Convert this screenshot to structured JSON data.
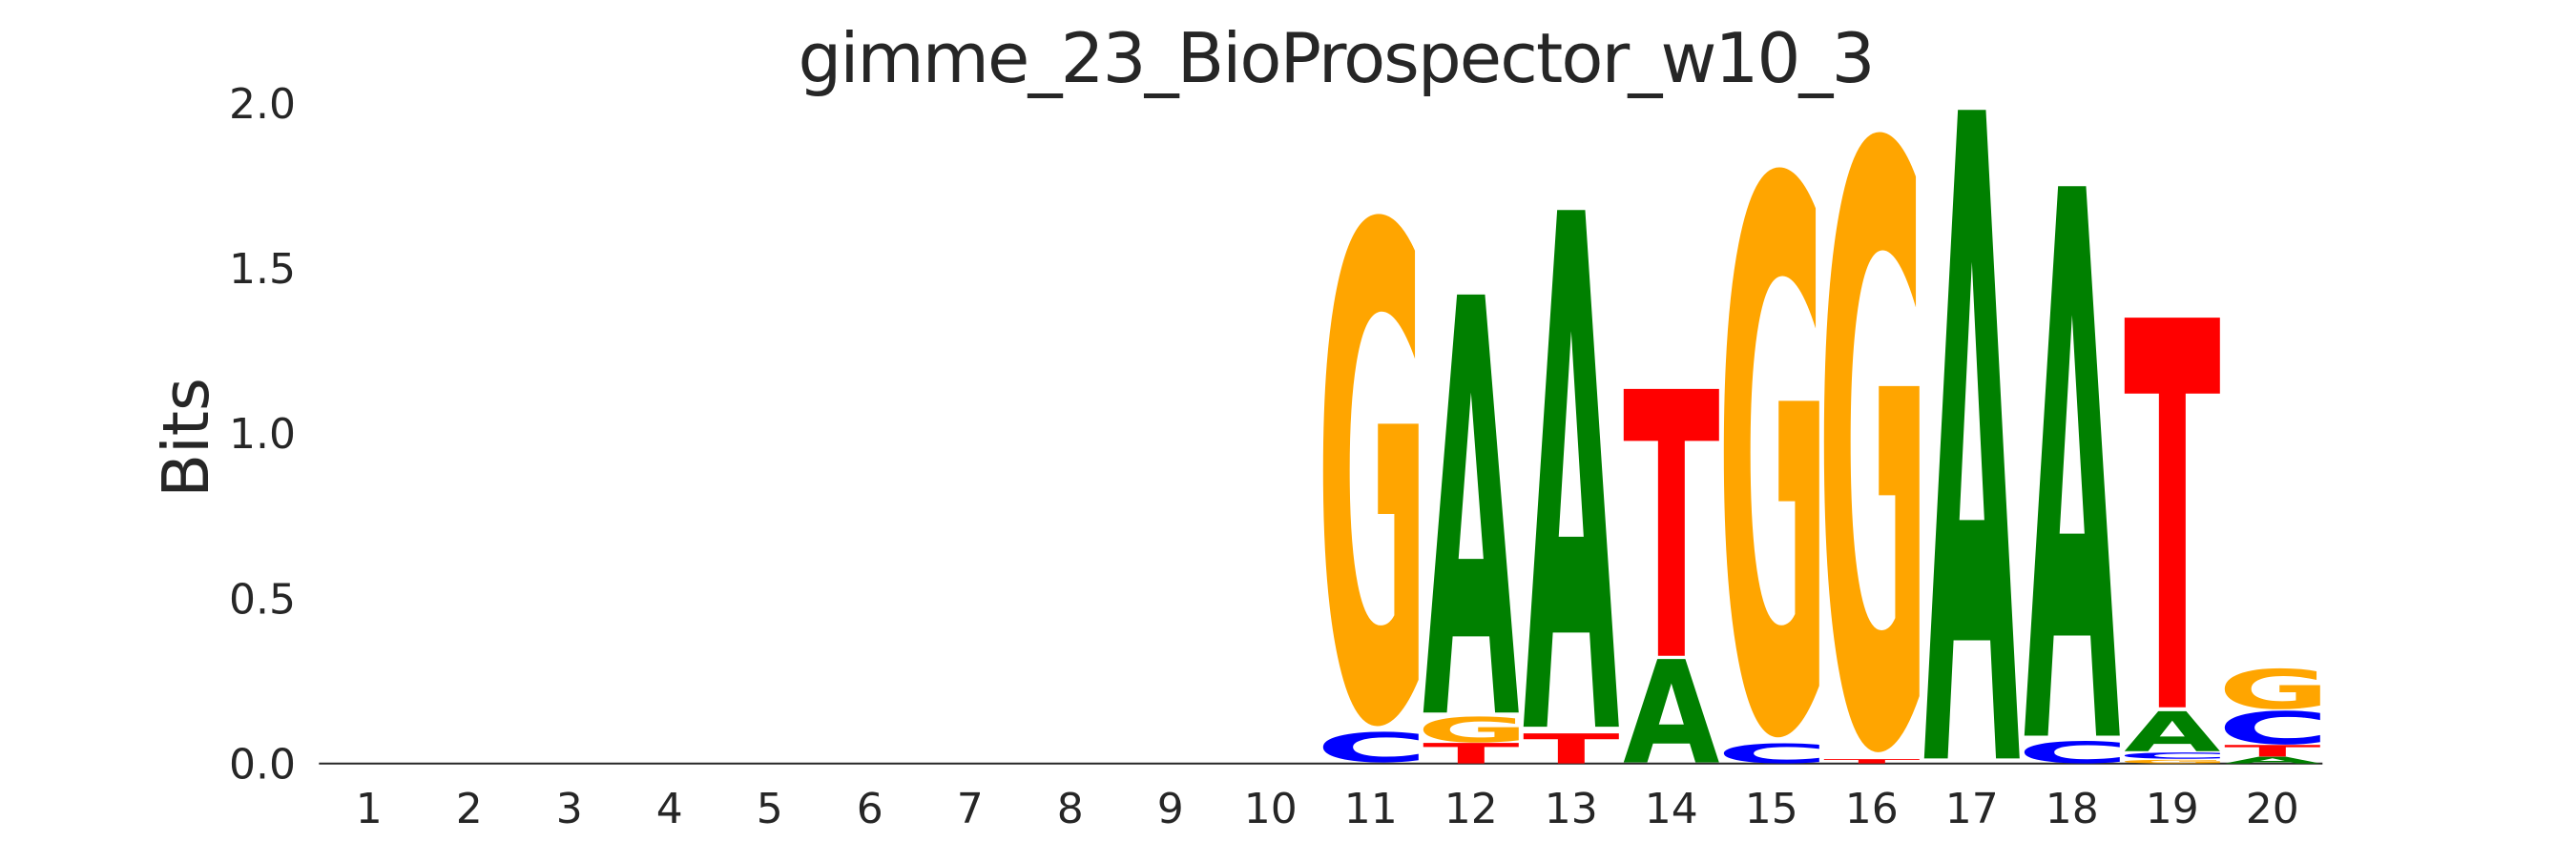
{
  "chart_data": {
    "type": "sequence_logo",
    "title": "gimme_23_BioProspector_w10_3",
    "xlabel": "",
    "ylabel": "Bits",
    "xlim": [
      0.5,
      20.5
    ],
    "ylim": [
      0.0,
      2.0
    ],
    "grid": false,
    "legend": "none",
    "y_ticks": [
      "0.0",
      "0.5",
      "1.0",
      "1.5",
      "2.0"
    ],
    "y_tick_values": [
      0.0,
      0.5,
      1.0,
      1.5,
      2.0
    ],
    "x_ticks": [
      "1",
      "2",
      "3",
      "4",
      "5",
      "6",
      "7",
      "8",
      "9",
      "10",
      "11",
      "12",
      "13",
      "14",
      "15",
      "16",
      "17",
      "18",
      "19",
      "20"
    ],
    "alphabet": [
      "A",
      "C",
      "G",
      "T"
    ],
    "letter_colors": {
      "A": "#008000",
      "C": "#0000FF",
      "G": "#FFA500",
      "T": "#FF0000"
    },
    "axis_color": "#262626",
    "text_color": "#262626",
    "background_color": "#ffffff",
    "positions": [
      {
        "position": 1,
        "letters": []
      },
      {
        "position": 2,
        "letters": []
      },
      {
        "position": 3,
        "letters": []
      },
      {
        "position": 4,
        "letters": []
      },
      {
        "position": 5,
        "letters": []
      },
      {
        "position": 6,
        "letters": []
      },
      {
        "position": 7,
        "letters": []
      },
      {
        "position": 8,
        "letters": []
      },
      {
        "position": 9,
        "letters": []
      },
      {
        "position": 10,
        "letters": []
      },
      {
        "position": 11,
        "letters": [
          {
            "letter": "C",
            "bits": 0.093,
            "bottom": 0.003
          },
          {
            "letter": "G",
            "bits": 1.551,
            "bottom": 0.113
          }
        ]
      },
      {
        "position": 12,
        "letters": [
          {
            "letter": "T",
            "bits": 0.062,
            "bottom": 0.0
          },
          {
            "letter": "G",
            "bits": 0.079,
            "bottom": 0.063
          },
          {
            "letter": "A",
            "bits": 1.266,
            "bottom": 0.154
          }
        ]
      },
      {
        "position": 13,
        "letters": [
          {
            "letter": "T",
            "bits": 0.091,
            "bottom": 0.0
          },
          {
            "letter": "A",
            "bits": 1.565,
            "bottom": 0.111
          }
        ]
      },
      {
        "position": 14,
        "letters": [
          {
            "letter": "A",
            "bits": 0.313,
            "bottom": 0.003
          },
          {
            "letter": "T",
            "bits": 0.808,
            "bottom": 0.326
          }
        ]
      },
      {
        "position": 15,
        "letters": [
          {
            "letter": "C",
            "bits": 0.061,
            "bottom": 0.0
          },
          {
            "letter": "G",
            "bits": 1.726,
            "bottom": 0.079
          }
        ]
      },
      {
        "position": 16,
        "letters": [
          {
            "letter": "T",
            "bits": 0.013,
            "bottom": 0.0
          },
          {
            "letter": "G",
            "bits": 1.878,
            "bottom": 0.034
          }
        ]
      },
      {
        "position": 17,
        "letters": [
          {
            "letter": "A",
            "bits": 1.964,
            "bottom": 0.015
          }
        ]
      },
      {
        "position": 18,
        "letters": [
          {
            "letter": "C",
            "bits": 0.068,
            "bottom": 0.0
          },
          {
            "letter": "A",
            "bits": 1.664,
            "bottom": 0.084
          }
        ]
      },
      {
        "position": 19,
        "letters": [
          {
            "letter": "G",
            "bits": 0.011,
            "bottom": 0.0
          },
          {
            "letter": "C",
            "bits": 0.019,
            "bottom": 0.014
          },
          {
            "letter": "A",
            "bits": 0.121,
            "bottom": 0.037
          },
          {
            "letter": "T",
            "bits": 1.18,
            "bottom": 0.17
          }
        ]
      },
      {
        "position": 20,
        "letters": [
          {
            "letter": "A",
            "bits": 0.02,
            "bottom": 0.0
          },
          {
            "letter": "T",
            "bits": 0.035,
            "bottom": 0.021
          },
          {
            "letter": "C",
            "bits": 0.103,
            "bottom": 0.057
          },
          {
            "letter": "G",
            "bits": 0.124,
            "bottom": 0.164
          }
        ]
      }
    ]
  }
}
